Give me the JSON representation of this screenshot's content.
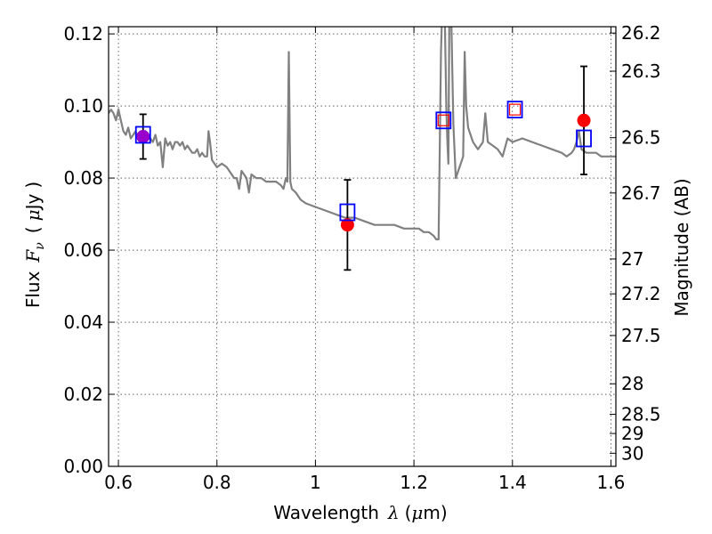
{
  "chart_data": {
    "type": "scatter",
    "xlabel_prefix": "Wavelength",
    "xlabel_symbol": "λ",
    "xlabel_unit_open": "(",
    "xlabel_unit_mu": "μ",
    "xlabel_unit_rest": "m)",
    "ylabel_prefix": "Flux",
    "ylabel_symbol": "F",
    "ylabel_subscript": "ν",
    "ylabel_unit_open": "(",
    "ylabel_unit_mu": "μ",
    "ylabel_unit_rest": "Jy",
    "ylabel_unit_close": ")",
    "y2label": "Magnitude (AB)",
    "xlim": [
      0.58,
      1.61
    ],
    "ylim": [
      0.0,
      0.122
    ],
    "grid": true,
    "x_ticks": [
      {
        "value": 0.6,
        "label": "0.6"
      },
      {
        "value": 0.8,
        "label": "0.8"
      },
      {
        "value": 1.0,
        "label": "1"
      },
      {
        "value": 1.2,
        "label": "1.2"
      },
      {
        "value": 1.4,
        "label": "1.4"
      },
      {
        "value": 1.6,
        "label": "1.6"
      }
    ],
    "y_ticks": [
      {
        "value": 0.0,
        "label": "0.00"
      },
      {
        "value": 0.02,
        "label": "0.02"
      },
      {
        "value": 0.04,
        "label": "0.04"
      },
      {
        "value": 0.06,
        "label": "0.06"
      },
      {
        "value": 0.08,
        "label": "0.08"
      },
      {
        "value": 0.1,
        "label": "0.10"
      },
      {
        "value": 0.12,
        "label": "0.12"
      }
    ],
    "mag_ticks": [
      {
        "value": 26.2,
        "label": "26.2"
      },
      {
        "value": 26.3,
        "label": "26.3"
      },
      {
        "value": 26.5,
        "label": "26.5"
      },
      {
        "value": 26.7,
        "label": "26.7"
      },
      {
        "value": 27.0,
        "label": "27"
      },
      {
        "value": 27.2,
        "label": "27.2"
      },
      {
        "value": 27.5,
        "label": "27.5"
      },
      {
        "value": 28.0,
        "label": "28"
      },
      {
        "value": 28.5,
        "label": "28.5"
      },
      {
        "value": 29.0,
        "label": "29"
      },
      {
        "value": 30.0,
        "label": "30"
      }
    ],
    "model_spectrum": {
      "color": "#808080",
      "x": [
        0.58,
        0.585,
        0.59,
        0.595,
        0.6,
        0.605,
        0.61,
        0.615,
        0.62,
        0.625,
        0.63,
        0.635,
        0.64,
        0.645,
        0.65,
        0.655,
        0.66,
        0.665,
        0.67,
        0.675,
        0.68,
        0.685,
        0.69,
        0.695,
        0.7,
        0.705,
        0.71,
        0.715,
        0.72,
        0.725,
        0.73,
        0.735,
        0.74,
        0.745,
        0.75,
        0.755,
        0.76,
        0.765,
        0.77,
        0.775,
        0.78,
        0.783,
        0.786,
        0.79,
        0.8,
        0.81,
        0.82,
        0.83,
        0.835,
        0.84,
        0.845,
        0.85,
        0.86,
        0.865,
        0.87,
        0.88,
        0.89,
        0.9,
        0.91,
        0.92,
        0.93,
        0.935,
        0.94,
        0.943,
        0.946,
        0.949,
        0.952,
        0.96,
        0.97,
        0.98,
        1.0,
        1.02,
        1.04,
        1.06,
        1.08,
        1.1,
        1.12,
        1.14,
        1.16,
        1.18,
        1.2,
        1.21,
        1.22,
        1.23,
        1.24,
        1.245,
        1.25,
        1.255,
        1.258,
        1.262,
        1.266,
        1.268,
        1.27,
        1.272,
        1.275,
        1.28,
        1.285,
        1.29,
        1.295,
        1.3,
        1.303,
        1.306,
        1.31,
        1.315,
        1.32,
        1.33,
        1.34,
        1.345,
        1.35,
        1.36,
        1.37,
        1.38,
        1.39,
        1.4,
        1.42,
        1.44,
        1.46,
        1.48,
        1.5,
        1.51,
        1.52,
        1.525,
        1.53,
        1.535,
        1.54,
        1.55,
        1.56,
        1.57,
        1.58,
        1.59,
        1.6,
        1.61
      ],
      "y": [
        0.098,
        0.099,
        0.098,
        0.096,
        0.099,
        0.096,
        0.093,
        0.092,
        0.094,
        0.091,
        0.092,
        0.093,
        0.091,
        0.092,
        0.092,
        0.093,
        0.091,
        0.091,
        0.09,
        0.092,
        0.089,
        0.09,
        0.083,
        0.091,
        0.089,
        0.09,
        0.088,
        0.09,
        0.09,
        0.089,
        0.09,
        0.088,
        0.089,
        0.088,
        0.087,
        0.087,
        0.088,
        0.086,
        0.087,
        0.086,
        0.086,
        0.093,
        0.09,
        0.085,
        0.083,
        0.084,
        0.083,
        0.081,
        0.08,
        0.08,
        0.077,
        0.082,
        0.08,
        0.076,
        0.081,
        0.08,
        0.08,
        0.079,
        0.079,
        0.079,
        0.078,
        0.077,
        0.08,
        0.079,
        0.115,
        0.079,
        0.077,
        0.076,
        0.074,
        0.073,
        0.072,
        0.071,
        0.07,
        0.069,
        0.069,
        0.068,
        0.067,
        0.067,
        0.067,
        0.066,
        0.066,
        0.066,
        0.065,
        0.065,
        0.064,
        0.063,
        0.063,
        0.115,
        0.13,
        0.13,
        0.098,
        0.09,
        0.084,
        0.13,
        0.13,
        0.095,
        0.08,
        0.082,
        0.084,
        0.086,
        0.115,
        0.1,
        0.094,
        0.092,
        0.09,
        0.088,
        0.09,
        0.098,
        0.09,
        0.089,
        0.088,
        0.086,
        0.091,
        0.09,
        0.091,
        0.09,
        0.089,
        0.088,
        0.087,
        0.086,
        0.087,
        0.088,
        0.09,
        0.093,
        0.088,
        0.087,
        0.087,
        0.087,
        0.086,
        0.086,
        0.086,
        0.086
      ]
    },
    "model_points": {
      "name_marker": "open-square",
      "color": "#0000ff",
      "points": [
        {
          "x": 0.65,
          "y": 0.092
        },
        {
          "x": 1.065,
          "y": 0.0705
        },
        {
          "x": 1.26,
          "y": 0.096
        },
        {
          "x": 1.405,
          "y": 0.099
        },
        {
          "x": 1.545,
          "y": 0.091
        }
      ]
    },
    "observed_points": {
      "name_marker": "filled-circle",
      "color": "#ff0000",
      "points": [
        {
          "x": 0.65,
          "y": 0.0915,
          "err": 0.0062
        },
        {
          "x": 1.065,
          "y": 0.067,
          "err": 0.0125
        },
        {
          "x": 1.545,
          "y": 0.096,
          "err": 0.015
        }
      ]
    },
    "upper_limits": {
      "name_marker": "open-square-small",
      "color": "#ff0000",
      "points": [
        {
          "x": 1.26,
          "y": 0.096
        },
        {
          "x": 1.405,
          "y": 0.099
        }
      ]
    },
    "highlight_color": "#9900cc"
  }
}
